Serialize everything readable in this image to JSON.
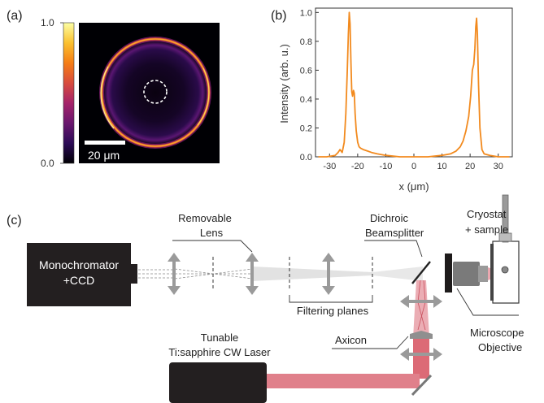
{
  "panel_labels": {
    "a": "(a)",
    "b": "(b)",
    "c": "(c)"
  },
  "panel_a": {
    "colorbar": {
      "max_label": "1.0",
      "min_label": "0.0",
      "colormap": [
        "#000004",
        "#2c0b57",
        "#6a176e",
        "#a5236a",
        "#d84c3e",
        "#f57d15",
        "#fbc130",
        "#fcffa4"
      ]
    },
    "scale_bar_label": "20 μm"
  },
  "chart_data": {
    "type": "line",
    "title": "",
    "xlabel": "x (μm)",
    "ylabel": "Intensity (arb. u.)",
    "xlim": [
      -35,
      35
    ],
    "ylim": [
      0,
      1.03
    ],
    "x_ticks": [
      -30,
      -20,
      -10,
      0,
      10,
      20,
      30
    ],
    "y_ticks": [
      0.0,
      0.2,
      0.4,
      0.6,
      0.8,
      1.0
    ],
    "y_tick_labels": [
      "0.0",
      "0.2",
      "0.4",
      "0.6",
      "0.8",
      "1.0"
    ],
    "series": [
      {
        "color": "#f28a1e",
        "x": [
          -34,
          -31,
          -28,
          -27,
          -26.3,
          -25.5,
          -24.8,
          -24.2,
          -23.7,
          -23.3,
          -23.0,
          -22.7,
          -22.4,
          -22.1,
          -21.8,
          -21.5,
          -21.2,
          -20.9,
          -20.5,
          -20.0,
          -19.5,
          -19.0,
          -18.0,
          -16.5,
          -15,
          -13,
          -10,
          -5,
          0,
          5,
          10,
          13,
          15,
          16.5,
          17.5,
          18.5,
          19.5,
          20.2,
          20.8,
          21.3,
          21.7,
          22.0,
          22.3,
          22.6,
          23.0,
          23.5,
          24.2,
          25,
          27,
          30,
          34
        ],
        "y": [
          0.0,
          0.0,
          0.01,
          0.03,
          0.05,
          0.03,
          0.1,
          0.3,
          0.6,
          0.85,
          1.0,
          0.92,
          0.65,
          0.45,
          0.42,
          0.46,
          0.44,
          0.3,
          0.18,
          0.1,
          0.07,
          0.06,
          0.05,
          0.04,
          0.03,
          0.02,
          0.01,
          0.0,
          0.0,
          0.0,
          0.01,
          0.02,
          0.04,
          0.07,
          0.11,
          0.18,
          0.28,
          0.42,
          0.6,
          0.64,
          0.75,
          0.9,
          0.96,
          0.85,
          0.5,
          0.2,
          0.05,
          0.02,
          0.01,
          0.0,
          0.0
        ]
      }
    ]
  },
  "panel_c": {
    "monochromator_label_line1": "Monochromator",
    "monochromator_label_line2": "+CCD",
    "removable_lens_line1": "Removable",
    "removable_lens_line2": "Lens",
    "dichroic_line1": "Dichroic",
    "dichroic_line2": "Beamsplitter",
    "cryostat_line1": "Cryostat",
    "cryostat_line2": "+ sample",
    "filtering_planes": "Filtering planes",
    "axicon": "Axicon",
    "microscope_line1": "Microscope",
    "microscope_line2": "Objective",
    "laser_line1": "Tunable",
    "laser_line2": "Ti:sapphire CW Laser"
  }
}
